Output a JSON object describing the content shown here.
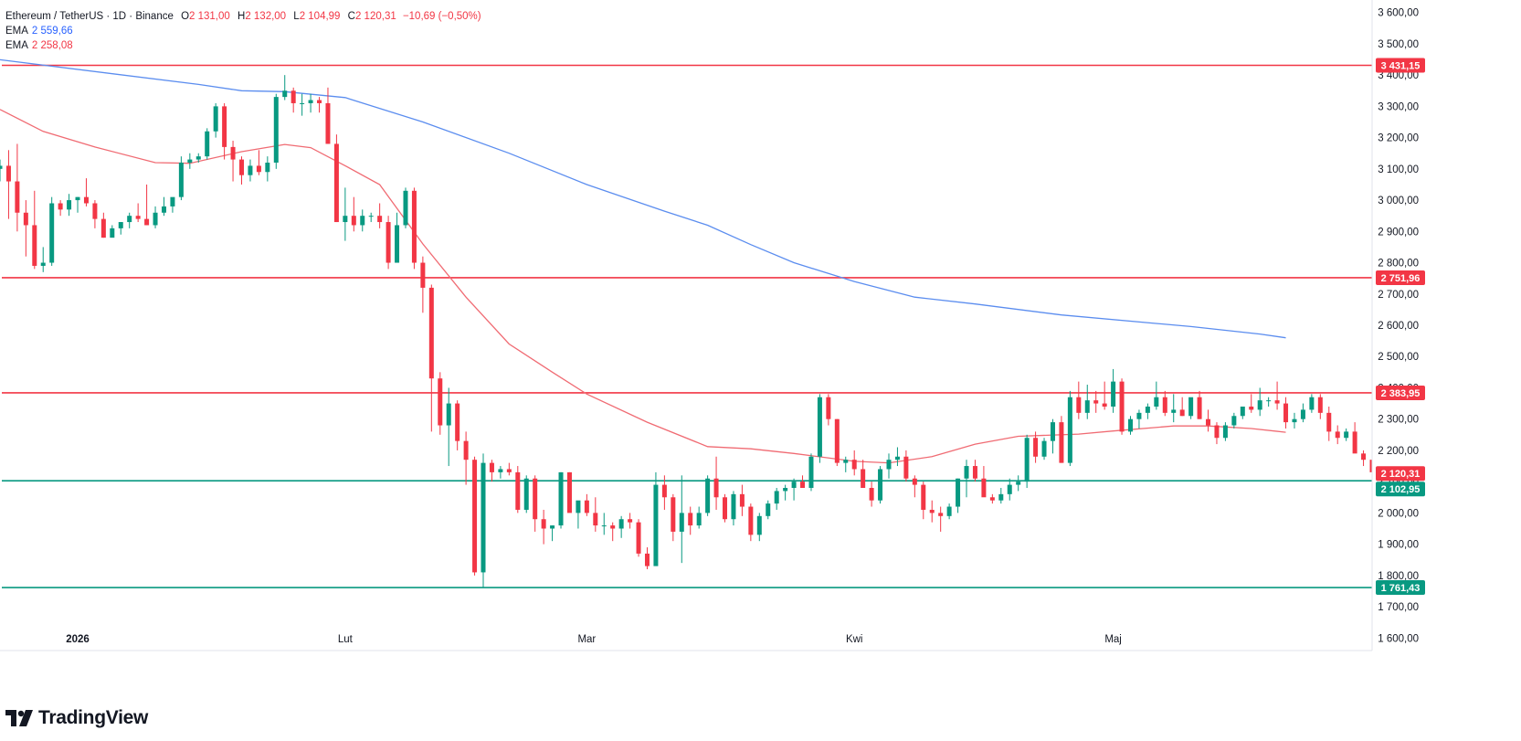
{
  "header": {
    "symbol": "Ethereum / TetherUS · 1D · Binance",
    "open_label": "O",
    "open": "2 131,00",
    "high_label": "H",
    "high": "2 132,00",
    "low_label": "L",
    "low": "2 104,99",
    "close_label": "C",
    "close": "2 120,31",
    "change": "−10,69 (−0,50%)",
    "ema1_label": "EMA",
    "ema1_value": "2 559,66",
    "ema2_label": "EMA",
    "ema2_value": "2 258,08"
  },
  "brand": {
    "name": "TradingView"
  },
  "colors": {
    "up": "#089981",
    "down": "#f23645",
    "ema_long": "#5b8def",
    "ema_short": "#f06b73",
    "resistance": "#f23645",
    "support": "#089981",
    "grid_text": "#131722",
    "axis_bg": "#ffffff"
  },
  "chart_data": {
    "type": "candlestick",
    "title": "Ethereum / TetherUS · 1D · Binance",
    "y_axis": {
      "ticks": [
        1600,
        1700,
        1800,
        1900,
        2000,
        2100,
        2200,
        2300,
        2400,
        2500,
        2600,
        2700,
        2800,
        2900,
        3000,
        3100,
        3200,
        3300,
        3400,
        3500,
        3600
      ],
      "tick_labels": [
        "1 600,00",
        "1 700,00",
        "1 800,00",
        "1 900,00",
        "2 000,00",
        "2 100,00",
        "2 200,00",
        "2 300,00",
        "2 400,00",
        "2 500,00",
        "2 600,00",
        "2 700,00",
        "2 800,00",
        "2 900,00",
        "3 000,00",
        "3 100,00",
        "3 200,00",
        "3 300,00",
        "3 400,00",
        "3 500,00",
        "3 600,00"
      ],
      "range": [
        1560,
        3640
      ]
    },
    "x_axis": {
      "labels": [
        "2026",
        "Lut",
        "Mar",
        "Kwi",
        "Maj"
      ],
      "label_dates": [
        "2026-01-01",
        "2026-02-01",
        "2026-03-01",
        "2026-04-01",
        "2026-05-01"
      ],
      "range": [
        "2025-12-23",
        "2026-05-31"
      ]
    },
    "horizontal_levels": [
      {
        "value": 3431.15,
        "label": "3 431,15",
        "kind": "resistance"
      },
      {
        "value": 2751.96,
        "label": "2 751,96",
        "kind": "resistance"
      },
      {
        "value": 2383.95,
        "label": "2 383,95",
        "kind": "resistance"
      },
      {
        "value": 2102.95,
        "label": "2 102,95",
        "kind": "support"
      },
      {
        "value": 1761.43,
        "label": "1 761,43",
        "kind": "support"
      }
    ],
    "last_price": {
      "value": 2120.31,
      "label": "2 120,31"
    },
    "candles": {
      "start_date": "2025-12-23",
      "ohlc": [
        [
          3100,
          3130,
          3060,
          3110
        ],
        [
          3110,
          3160,
          2940,
          3060
        ],
        [
          3060,
          3180,
          2900,
          2960
        ],
        [
          2960,
          3000,
          2820,
          2920
        ],
        [
          2920,
          3030,
          2780,
          2790
        ],
        [
          2790,
          2850,
          2770,
          2800
        ],
        [
          2800,
          3010,
          2790,
          2990
        ],
        [
          2990,
          3000,
          2950,
          2970
        ],
        [
          2970,
          3020,
          2950,
          3000
        ],
        [
          3000,
          3010,
          2960,
          3010
        ],
        [
          3010,
          3070,
          2980,
          2990
        ],
        [
          2990,
          3000,
          2910,
          2940
        ],
        [
          2940,
          2960,
          2880,
          2880
        ],
        [
          2880,
          2920,
          2890,
          2910
        ],
        [
          2910,
          2930,
          2890,
          2930
        ],
        [
          2930,
          2960,
          2910,
          2950
        ],
        [
          2950,
          2990,
          2930,
          2940
        ],
        [
          2940,
          3050,
          2920,
          2920
        ],
        [
          2920,
          2980,
          2910,
          2960
        ],
        [
          2960,
          3010,
          2950,
          2980
        ],
        [
          2980,
          3000,
          2960,
          3010
        ],
        [
          3010,
          3140,
          3000,
          3120
        ],
        [
          3120,
          3150,
          3100,
          3130
        ],
        [
          3130,
          3150,
          3120,
          3140
        ],
        [
          3140,
          3230,
          3130,
          3220
        ],
        [
          3220,
          3310,
          3200,
          3300
        ],
        [
          3300,
          3310,
          3130,
          3170
        ],
        [
          3170,
          3190,
          3060,
          3130
        ],
        [
          3130,
          3140,
          3050,
          3080
        ],
        [
          3080,
          3130,
          3060,
          3110
        ],
        [
          3110,
          3160,
          3080,
          3090
        ],
        [
          3090,
          3140,
          3060,
          3120
        ],
        [
          3120,
          3340,
          3100,
          3330
        ],
        [
          3330,
          3400,
          3320,
          3350
        ],
        [
          3350,
          3360,
          3280,
          3310
        ],
        [
          3310,
          3340,
          3270,
          3310
        ],
        [
          3310,
          3340,
          3280,
          3320
        ],
        [
          3320,
          3330,
          3280,
          3310
        ],
        [
          3310,
          3360,
          3180,
          3180
        ],
        [
          3180,
          3210,
          2930,
          2930
        ],
        [
          2930,
          3040,
          2870,
          2950
        ],
        [
          2950,
          3010,
          2900,
          2920
        ],
        [
          2920,
          2970,
          2900,
          2950
        ],
        [
          2950,
          2960,
          2930,
          2950
        ],
        [
          2950,
          2990,
          2910,
          2930
        ],
        [
          2930,
          2950,
          2780,
          2800
        ],
        [
          2800,
          2960,
          2800,
          2920
        ],
        [
          2920,
          3040,
          2910,
          3030
        ],
        [
          3030,
          3040,
          2780,
          2800
        ],
        [
          2800,
          2820,
          2640,
          2720
        ],
        [
          2720,
          2730,
          2260,
          2430
        ],
        [
          2430,
          2450,
          2250,
          2280
        ],
        [
          2280,
          2400,
          2150,
          2350
        ],
        [
          2350,
          2360,
          2200,
          2230
        ],
        [
          2230,
          2260,
          2090,
          2170
        ],
        [
          2170,
          2180,
          1800,
          1810
        ],
        [
          1810,
          2190,
          1760,
          2160
        ],
        [
          2160,
          2170,
          2100,
          2130
        ],
        [
          2130,
          2150,
          2110,
          2140
        ],
        [
          2140,
          2160,
          2120,
          2130
        ],
        [
          2130,
          2150,
          2000,
          2010
        ],
        [
          2010,
          2120,
          2000,
          2110
        ],
        [
          2110,
          2120,
          1940,
          1980
        ],
        [
          1980,
          2010,
          1900,
          1950
        ],
        [
          1950,
          1960,
          1910,
          1960
        ],
        [
          1960,
          2130,
          1950,
          2130
        ],
        [
          2130,
          2130,
          2010,
          2000
        ],
        [
          2000,
          2030,
          1950,
          2040
        ],
        [
          2040,
          2060,
          1990,
          2000
        ],
        [
          2000,
          2050,
          1940,
          1960
        ],
        [
          1960,
          2000,
          1930,
          1960
        ],
        [
          1960,
          1970,
          1910,
          1950
        ],
        [
          1950,
          1990,
          1920,
          1980
        ],
        [
          1980,
          2000,
          1950,
          1970
        ],
        [
          1970,
          1980,
          1860,
          1870
        ],
        [
          1870,
          1890,
          1820,
          1830
        ],
        [
          1830,
          2130,
          1850,
          2090
        ],
        [
          2090,
          2120,
          2010,
          2050
        ],
        [
          2050,
          2060,
          1910,
          1940
        ],
        [
          1940,
          2120,
          1840,
          2000
        ],
        [
          2000,
          2020,
          1930,
          1960
        ],
        [
          1960,
          2020,
          1950,
          2000
        ],
        [
          2000,
          2120,
          1990,
          2110
        ],
        [
          2110,
          2180,
          2010,
          2050
        ],
        [
          2050,
          2060,
          1970,
          1980
        ],
        [
          1980,
          2070,
          1960,
          2060
        ],
        [
          2060,
          2090,
          1990,
          2020
        ],
        [
          2020,
          2030,
          1910,
          1930
        ],
        [
          1930,
          2000,
          1910,
          1990
        ],
        [
          1990,
          2040,
          1980,
          2030
        ],
        [
          2030,
          2080,
          2010,
          2070
        ],
        [
          2070,
          2090,
          2040,
          2080
        ],
        [
          2080,
          2110,
          2040,
          2100
        ],
        [
          2100,
          2120,
          2080,
          2080
        ],
        [
          2080,
          2190,
          2070,
          2180
        ],
        [
          2180,
          2380,
          2160,
          2370
        ],
        [
          2370,
          2380,
          2280,
          2300
        ],
        [
          2300,
          2300,
          2150,
          2160
        ],
        [
          2160,
          2180,
          2130,
          2170
        ],
        [
          2170,
          2200,
          2120,
          2140
        ],
        [
          2140,
          2170,
          2080,
          2080
        ],
        [
          2080,
          2100,
          2020,
          2040
        ],
        [
          2040,
          2150,
          2030,
          2140
        ],
        [
          2140,
          2190,
          2110,
          2170
        ],
        [
          2170,
          2210,
          2150,
          2180
        ],
        [
          2180,
          2200,
          2100,
          2110
        ],
        [
          2110,
          2120,
          2050,
          2090
        ],
        [
          2090,
          2100,
          1980,
          2010
        ],
        [
          2010,
          2040,
          1970,
          2000
        ],
        [
          2000,
          2020,
          1940,
          1990
        ],
        [
          1990,
          2030,
          1980,
          2020
        ],
        [
          2020,
          2110,
          2000,
          2110
        ],
        [
          2110,
          2170,
          2050,
          2150
        ],
        [
          2150,
          2170,
          2100,
          2110
        ],
        [
          2110,
          2150,
          2060,
          2050
        ],
        [
          2050,
          2060,
          2030,
          2040
        ],
        [
          2040,
          2080,
          2030,
          2060
        ],
        [
          2060,
          2110,
          2040,
          2090
        ],
        [
          2090,
          2120,
          2070,
          2100
        ],
        [
          2100,
          2250,
          2080,
          2240
        ],
        [
          2240,
          2260,
          2160,
          2180
        ],
        [
          2180,
          2240,
          2170,
          2230
        ],
        [
          2230,
          2300,
          2190,
          2290
        ],
        [
          2290,
          2310,
          2160,
          2160
        ],
        [
          2160,
          2390,
          2150,
          2370
        ],
        [
          2370,
          2420,
          2300,
          2320
        ],
        [
          2320,
          2410,
          2300,
          2360
        ],
        [
          2360,
          2390,
          2320,
          2350
        ],
        [
          2350,
          2420,
          2330,
          2340
        ],
        [
          2340,
          2460,
          2320,
          2420
        ],
        [
          2420,
          2430,
          2250,
          2260
        ],
        [
          2260,
          2310,
          2250,
          2300
        ],
        [
          2300,
          2330,
          2270,
          2320
        ],
        [
          2320,
          2350,
          2300,
          2340
        ],
        [
          2340,
          2420,
          2330,
          2370
        ],
        [
          2370,
          2390,
          2310,
          2320
        ],
        [
          2320,
          2380,
          2290,
          2330
        ],
        [
          2330,
          2370,
          2310,
          2310
        ],
        [
          2310,
          2360,
          2300,
          2370
        ],
        [
          2370,
          2390,
          2300,
          2300
        ],
        [
          2300,
          2330,
          2260,
          2280
        ],
        [
          2280,
          2290,
          2220,
          2240
        ],
        [
          2240,
          2290,
          2230,
          2280
        ],
        [
          2280,
          2320,
          2270,
          2310
        ],
        [
          2310,
          2340,
          2300,
          2340
        ],
        [
          2340,
          2380,
          2320,
          2330
        ],
        [
          2330,
          2400,
          2310,
          2360
        ],
        [
          2360,
          2370,
          2340,
          2360
        ],
        [
          2360,
          2420,
          2330,
          2350
        ],
        [
          2350,
          2370,
          2270,
          2290
        ],
        [
          2290,
          2320,
          2270,
          2300
        ],
        [
          2300,
          2350,
          2290,
          2330
        ],
        [
          2330,
          2380,
          2320,
          2370
        ],
        [
          2370,
          2380,
          2300,
          2320
        ],
        [
          2320,
          2340,
          2230,
          2260
        ],
        [
          2260,
          2280,
          2220,
          2240
        ],
        [
          2240,
          2270,
          2230,
          2260
        ],
        [
          2260,
          2290,
          2210,
          2190
        ],
        [
          2190,
          2200,
          2150,
          2170
        ],
        [
          2170,
          2180,
          2100,
          2130
        ],
        [
          2131,
          2132,
          2105,
          2120
        ]
      ]
    },
    "ema_long": {
      "label": "EMA",
      "last_value": 2559.66,
      "points": [
        [
          "2025-12-23",
          3449
        ],
        [
          "2026-01-15",
          3370
        ],
        [
          "2026-01-20",
          3350
        ],
        [
          "2026-01-25",
          3347
        ],
        [
          "2026-02-01",
          3328
        ],
        [
          "2026-02-10",
          3250
        ],
        [
          "2026-02-20",
          3150
        ],
        [
          "2026-03-01",
          3050
        ],
        [
          "2026-03-10",
          2965
        ],
        [
          "2026-03-15",
          2920
        ],
        [
          "2026-03-20",
          2858
        ],
        [
          "2026-03-25",
          2800
        ],
        [
          "2026-04-01",
          2740
        ],
        [
          "2026-04-08",
          2690
        ],
        [
          "2026-04-15",
          2668
        ],
        [
          "2026-04-25",
          2633
        ],
        [
          "2026-05-10",
          2596
        ],
        [
          "2026-05-18",
          2572
        ],
        [
          "2026-05-21",
          2560
        ]
      ]
    },
    "ema_short": {
      "label": "EMA",
      "last_value": 2258.08,
      "points": [
        [
          "2025-12-23",
          3290
        ],
        [
          "2025-12-28",
          3220
        ],
        [
          "2026-01-03",
          3170
        ],
        [
          "2026-01-10",
          3120
        ],
        [
          "2026-01-14",
          3118
        ],
        [
          "2026-01-20",
          3155
        ],
        [
          "2026-01-25",
          3178
        ],
        [
          "2026-01-28",
          3168
        ],
        [
          "2026-02-01",
          3110
        ],
        [
          "2026-02-05",
          3050
        ],
        [
          "2026-02-10",
          2860
        ],
        [
          "2026-02-15",
          2690
        ],
        [
          "2026-02-20",
          2540
        ],
        [
          "2026-02-25",
          2450
        ],
        [
          "2026-03-01",
          2380
        ],
        [
          "2026-03-08",
          2290
        ],
        [
          "2026-03-15",
          2212
        ],
        [
          "2026-03-20",
          2205
        ],
        [
          "2026-03-25",
          2190
        ],
        [
          "2026-04-01",
          2165
        ],
        [
          "2026-04-05",
          2160
        ],
        [
          "2026-04-10",
          2180
        ],
        [
          "2026-04-15",
          2220
        ],
        [
          "2026-04-20",
          2245
        ],
        [
          "2026-04-27",
          2252
        ],
        [
          "2026-05-01",
          2262
        ],
        [
          "2026-05-08",
          2278
        ],
        [
          "2026-05-12",
          2278
        ],
        [
          "2026-05-17",
          2270
        ],
        [
          "2026-05-21",
          2258
        ]
      ]
    }
  }
}
